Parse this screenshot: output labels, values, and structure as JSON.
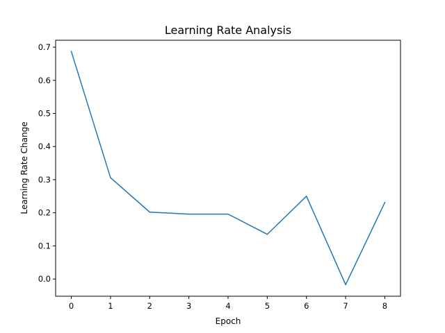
{
  "chart_data": {
    "type": "line",
    "title": "Learning Rate Analysis",
    "xlabel": "Epoch",
    "ylabel": "Learning Rate Change",
    "x": [
      0,
      1,
      2,
      3,
      4,
      5,
      6,
      7,
      8
    ],
    "series": [
      {
        "values": [
          0.687,
          0.306,
          0.202,
          0.196,
          0.196,
          0.135,
          0.25,
          -0.017,
          0.231
        ],
        "color": "#1f77b4"
      }
    ],
    "xlim": [
      -0.4,
      8.4
    ],
    "ylim": [
      -0.052,
      0.721
    ],
    "xticks": [
      "0",
      "1",
      "2",
      "3",
      "4",
      "5",
      "6",
      "7",
      "8"
    ],
    "yticks": [
      "0.0",
      "0.1",
      "0.2",
      "0.3",
      "0.4",
      "0.5",
      "0.6",
      "0.7"
    ],
    "grid": false,
    "legend": "none"
  }
}
